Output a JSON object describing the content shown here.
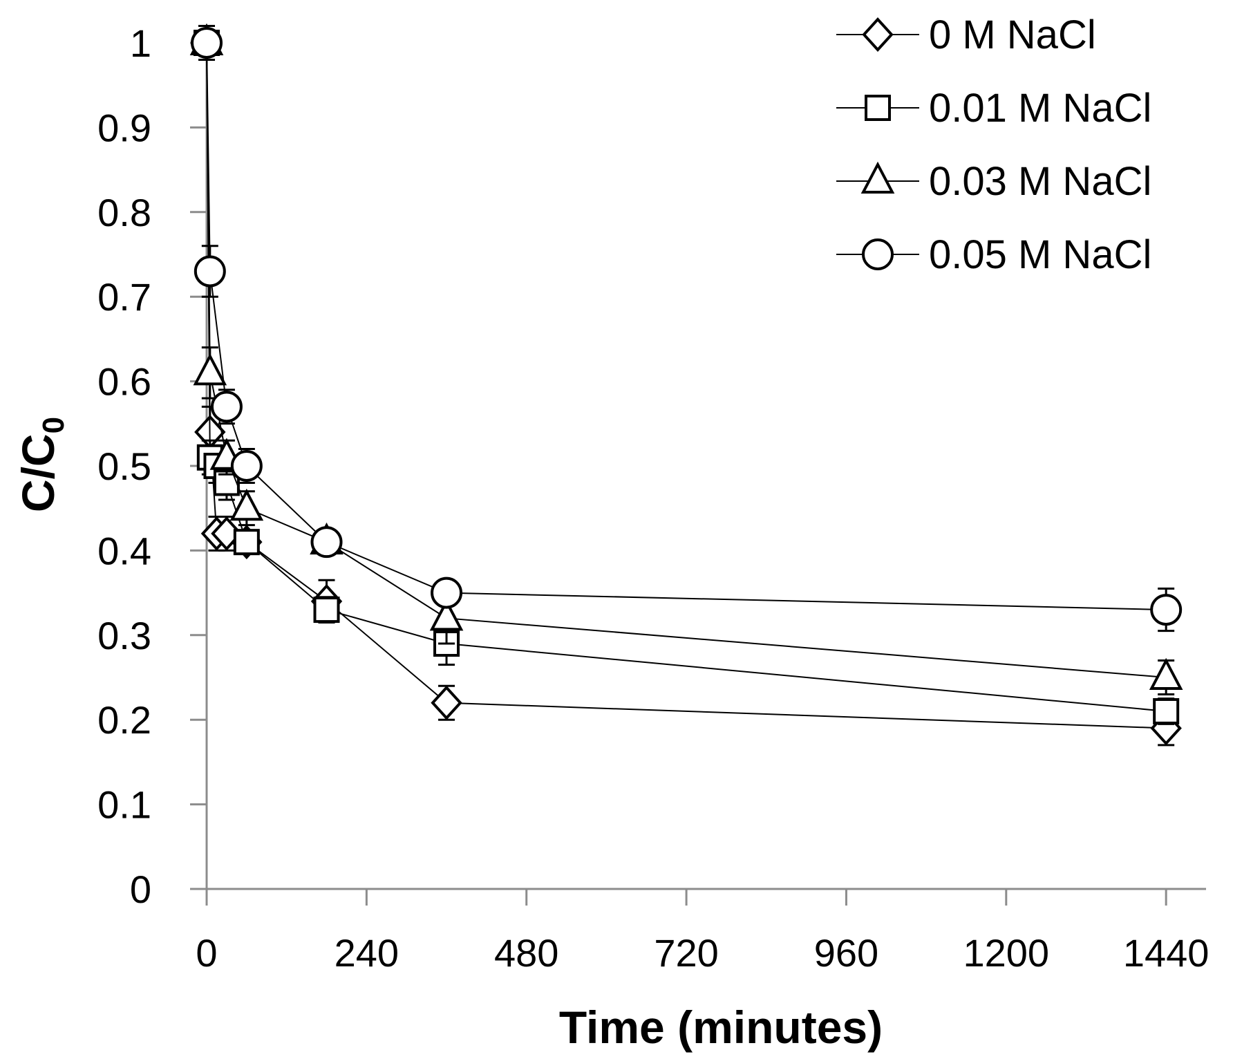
{
  "chart_data": {
    "type": "line",
    "title": "",
    "xlabel": "Time (minutes)",
    "ylabel_main": "C/C",
    "ylabel_sub": "0",
    "xlim": [
      0,
      1500
    ],
    "ylim": [
      0,
      1
    ],
    "x_ticks": [
      0,
      240,
      480,
      720,
      960,
      1200,
      1440
    ],
    "x_tick_labels": [
      "0",
      "240",
      "480",
      "720",
      "960",
      "1200",
      "1440"
    ],
    "y_ticks": [
      0,
      0.1,
      0.2,
      0.3,
      0.4,
      0.5,
      0.6,
      0.7,
      0.8,
      0.9,
      1
    ],
    "y_tick_labels": [
      "0",
      "0.1",
      "0.2",
      "0.3",
      "0.4",
      "0.5",
      "0.6",
      "0.7",
      "0.8",
      "0.9",
      "1"
    ],
    "grid": false,
    "legend_position": "top-right",
    "series": [
      {
        "name": "0 M NaCl",
        "marker": "diamond",
        "x": [
          0,
          5,
          15,
          30,
          60,
          180,
          360,
          1440
        ],
        "y": [
          1,
          0.54,
          0.42,
          0.42,
          0.41,
          0.34,
          0.22,
          0.19
        ],
        "err": [
          0.02,
          0.03,
          0.02,
          0.02,
          0.01,
          0.025,
          0.02,
          0.02
        ]
      },
      {
        "name": "0.01 M NaCl",
        "marker": "square",
        "x": [
          0,
          5,
          15,
          30,
          60,
          180,
          360,
          1440
        ],
        "y": [
          1,
          0.51,
          0.5,
          0.48,
          0.41,
          0.33,
          0.29,
          0.21
        ],
        "err": [
          0.02,
          0.02,
          0.02,
          0.02,
          0.01,
          0.015,
          0.025,
          0.015
        ]
      },
      {
        "name": "0.03 M NaCl",
        "marker": "triangle",
        "x": [
          0,
          5,
          30,
          60,
          180,
          360,
          1440
        ],
        "y": [
          1,
          0.61,
          0.51,
          0.45,
          0.41,
          0.32,
          0.25
        ],
        "err": [
          0.02,
          0.03,
          0.02,
          0.02,
          0.01,
          0.03,
          0.02
        ]
      },
      {
        "name": "0.05 M NaCl",
        "marker": "circle",
        "x": [
          0,
          5,
          30,
          60,
          180,
          360,
          1440
        ],
        "y": [
          1,
          0.73,
          0.57,
          0.5,
          0.41,
          0.35,
          0.33
        ],
        "err": [
          0.02,
          0.03,
          0.02,
          0.02,
          0.01,
          0.015,
          0.025
        ]
      }
    ]
  }
}
